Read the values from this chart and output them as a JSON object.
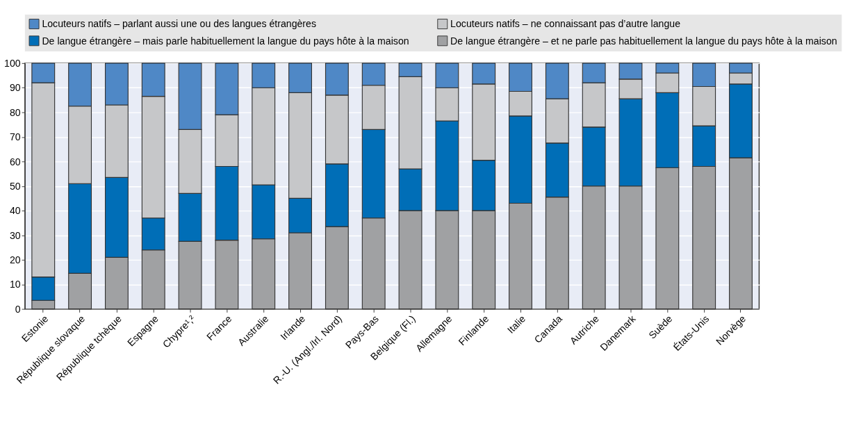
{
  "chart_data": {
    "type": "bar",
    "stacked": true,
    "categories": [
      "Estonie",
      "République slovaque",
      "République tchèque",
      "Espagne",
      "Chypre¹,²",
      "France",
      "Australie",
      "Irlande",
      "R.-U. (Angl./Irl. Nord)",
      "Pays-Bas",
      "Belgique (Fl.)",
      "Allemagne",
      "Finlande",
      "Italie",
      "Canada",
      "Autriche",
      "Danemark",
      "Suède",
      "États-Unis",
      "Norvège"
    ],
    "series": [
      {
        "name": "De langue étrangère – et ne parle pas habituellement la langue du pays hôte à la maison",
        "color": "#a0a1a3",
        "values": [
          3.5,
          14.5,
          21,
          24,
          27.5,
          28,
          28.5,
          31,
          33.5,
          37,
          40,
          40,
          40,
          43,
          45.5,
          50,
          50,
          57.5,
          58,
          61.5
        ]
      },
      {
        "name": "De langue étrangère – mais parle habituellement la langue du pays hôte à la maison",
        "color": "#006eb7",
        "values": [
          9.5,
          36.5,
          32.5,
          13,
          19.5,
          30,
          22,
          14,
          25.5,
          36,
          17,
          36.5,
          20.5,
          35.5,
          22,
          24,
          35.5,
          30.5,
          16.5,
          30
        ]
      },
      {
        "name": "Locuteurs natifs – ne connaissant pas d’autre langue",
        "color": "#c6c7c9",
        "values": [
          79,
          31.5,
          29.5,
          49.5,
          26,
          21,
          39.5,
          43,
          28,
          18,
          37.5,
          13.5,
          31,
          10,
          18,
          18,
          8,
          8,
          16,
          4.5
        ]
      },
      {
        "name": "Locuteurs natifs – parlant aussi une ou des langues étrangères",
        "color": "#4f88c6",
        "values": [
          8,
          17.5,
          17,
          13.5,
          27,
          21,
          10,
          12,
          13,
          9,
          5.5,
          10,
          8.5,
          11.5,
          14.5,
          8,
          6.5,
          4,
          9.5,
          4
        ]
      }
    ],
    "ylim": [
      0,
      100
    ],
    "yticks": [
      0,
      10,
      20,
      30,
      40,
      50,
      60,
      70,
      80,
      90,
      100
    ],
    "grid": "y",
    "legend": "top"
  }
}
